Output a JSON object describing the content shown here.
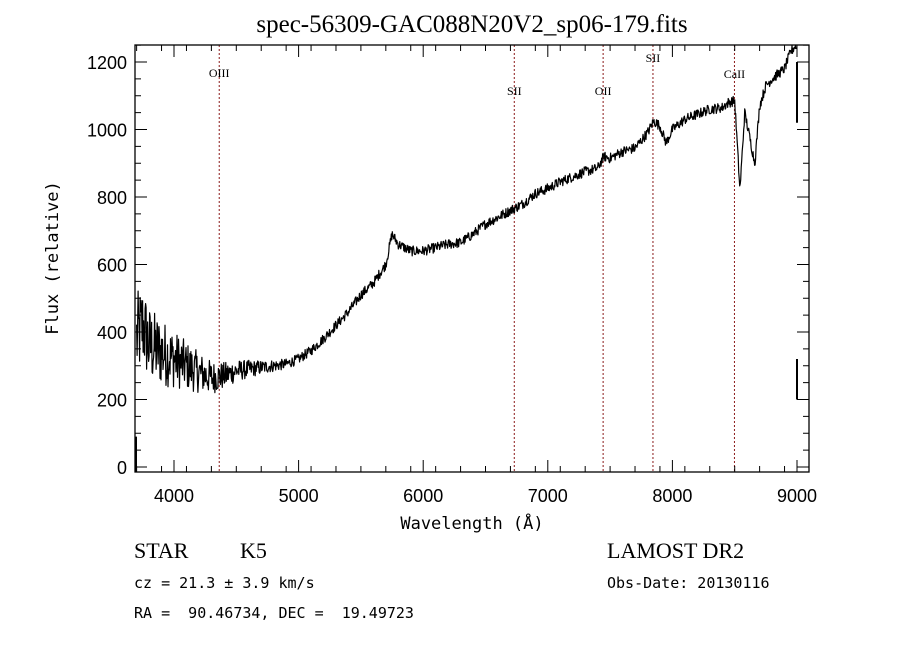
{
  "chart_data": {
    "type": "line",
    "title": "spec-56309-GAC088N20V2_sp06-179.fits",
    "xlabel": "Wavelength (Å)",
    "ylabel": "Flux (relative)",
    "xlim": [
      3690,
      9100
    ],
    "ylim": [
      -15,
      1250
    ],
    "x_ticks": [
      4000,
      5000,
      6000,
      7000,
      8000,
      9000
    ],
    "x_tick_labels": [
      "4000",
      "5000",
      "6000",
      "7000",
      "8000",
      "9000"
    ],
    "y_ticks": [
      0,
      200,
      400,
      600,
      800,
      1000,
      1200
    ],
    "y_tick_labels": [
      "0",
      "200",
      "400",
      "600",
      "800",
      "1000",
      "1200"
    ],
    "grid": false,
    "line_color": "#000000",
    "marker_color": "#8b1a1a",
    "spectral_lines": [
      {
        "name": "OIII",
        "wavelength": 4363,
        "label_row": "high"
      },
      {
        "name": "SII",
        "wavelength": 6731,
        "label_row": "low"
      },
      {
        "name": "OII",
        "wavelength": 7444,
        "label_row": "low"
      },
      {
        "name": "SII",
        "wavelength": 7844,
        "label_row": "top"
      },
      {
        "name": "CaII",
        "wavelength": 8498,
        "label_row": "mid"
      }
    ],
    "series": [
      {
        "name": "flux",
        "anchors": [
          [
            3700,
            380
          ],
          [
            3750,
            420
          ],
          [
            3800,
            360
          ],
          [
            3900,
            340
          ],
          [
            4000,
            320
          ],
          [
            4100,
            300
          ],
          [
            4200,
            280
          ],
          [
            4300,
            265
          ],
          [
            4400,
            270
          ],
          [
            4500,
            285
          ],
          [
            4600,
            290
          ],
          [
            4700,
            295
          ],
          [
            4800,
            300
          ],
          [
            4900,
            305
          ],
          [
            5000,
            320
          ],
          [
            5100,
            345
          ],
          [
            5200,
            380
          ],
          [
            5300,
            420
          ],
          [
            5400,
            460
          ],
          [
            5500,
            510
          ],
          [
            5600,
            545
          ],
          [
            5700,
            600
          ],
          [
            5750,
            690
          ],
          [
            5800,
            660
          ],
          [
            5900,
            640
          ],
          [
            6000,
            640
          ],
          [
            6100,
            650
          ],
          [
            6200,
            660
          ],
          [
            6300,
            665
          ],
          [
            6400,
            690
          ],
          [
            6500,
            720
          ],
          [
            6600,
            740
          ],
          [
            6700,
            760
          ],
          [
            6800,
            780
          ],
          [
            6900,
            810
          ],
          [
            7000,
            825
          ],
          [
            7100,
            845
          ],
          [
            7200,
            860
          ],
          [
            7300,
            875
          ],
          [
            7400,
            885
          ],
          [
            7450,
            920
          ],
          [
            7500,
            915
          ],
          [
            7600,
            935
          ],
          [
            7700,
            945
          ],
          [
            7800,
            990
          ],
          [
            7850,
            1025
          ],
          [
            7900,
            1010
          ],
          [
            7950,
            960
          ],
          [
            8000,
            1000
          ],
          [
            8100,
            1030
          ],
          [
            8200,
            1045
          ],
          [
            8300,
            1060
          ],
          [
            8400,
            1065
          ],
          [
            8450,
            1080
          ],
          [
            8500,
            1085
          ],
          [
            8542,
            820
          ],
          [
            8580,
            1050
          ],
          [
            8662,
            900
          ],
          [
            8700,
            1070
          ],
          [
            8750,
            1130
          ],
          [
            8800,
            1150
          ],
          [
            8900,
            1180
          ],
          [
            8950,
            1230
          ],
          [
            8990,
            1250
          ]
        ],
        "noise_amplitude_blue": 120,
        "noise_amplitude_red": 15
      }
    ]
  },
  "info": {
    "object_type": "STAR",
    "subclass": "K5",
    "survey": "LAMOST DR2",
    "redshift": "cz = 21.3 ± 3.9 km/s",
    "obs_date": "Obs-Date: 20130116",
    "coordinates": "RA =  90.46734, DEC =  19.49723"
  }
}
